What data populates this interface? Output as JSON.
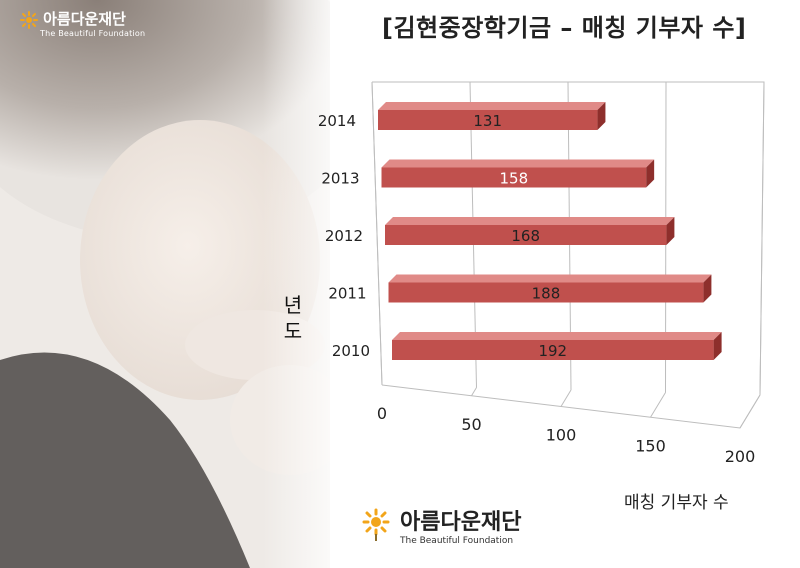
{
  "page": {
    "logo_top_name": "아름다운재단",
    "logo_top_sub": "The Beautiful Foundation",
    "logo_bottom_name": "아름다운재단",
    "logo_bottom_sub": "The Beautiful Foundation"
  },
  "colors": {
    "bar_front": "#c0504d",
    "bar_top": "#e08a87",
    "bar_side": "#8e2f2c"
  },
  "chart_data": {
    "type": "bar",
    "orientation": "horizontal",
    "style": "3d",
    "title": "[김현중장학기금 – 매칭 기부자 수]",
    "xlabel": "매칭 기부자 수",
    "ylabel": "년도",
    "ylabel_chars": [
      "년",
      "도"
    ],
    "categories": [
      "2014",
      "2013",
      "2012",
      "2011",
      "2010"
    ],
    "values": [
      131,
      158,
      168,
      188,
      192
    ],
    "value_labels": [
      "131",
      "158",
      "168",
      "188",
      "192"
    ],
    "xlim": [
      0,
      200
    ],
    "x_ticks": [
      0,
      50,
      100,
      150,
      200
    ],
    "x_tick_labels": [
      "0",
      "50",
      "100",
      "150",
      "200"
    ],
    "grid": true,
    "legend": "none"
  }
}
